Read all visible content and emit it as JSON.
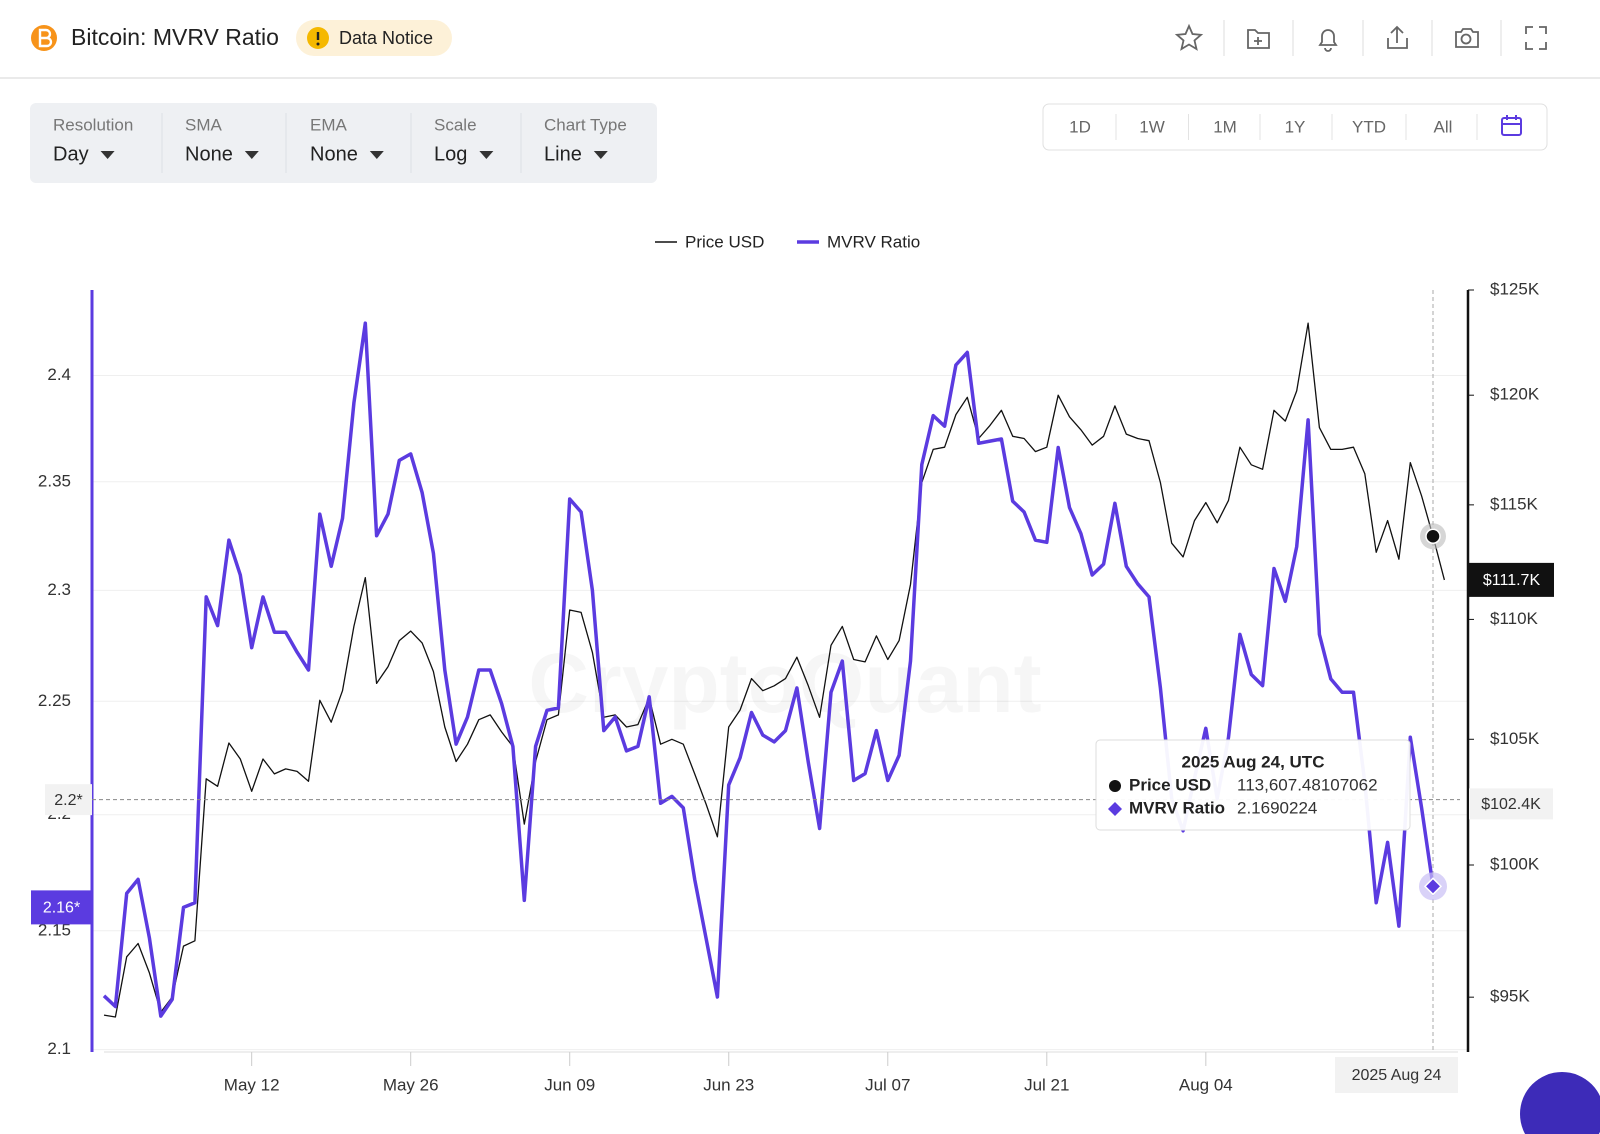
{
  "header": {
    "title": "Bitcoin: MVRV Ratio",
    "notice": "Data Notice"
  },
  "controls": [
    {
      "label": "Resolution",
      "value": "Day"
    },
    {
      "label": "SMA",
      "value": "None"
    },
    {
      "label": "EMA",
      "value": "None"
    },
    {
      "label": "Scale",
      "value": "Log"
    },
    {
      "label": "Chart Type",
      "value": "Line"
    }
  ],
  "ranges": [
    "1D",
    "1W",
    "1M",
    "1Y",
    "YTD",
    "All"
  ],
  "chart_data": {
    "type": "line",
    "watermark": "CryptoQuant",
    "legend": "top",
    "grid": true,
    "log_scale": true,
    "x": [
      "2025-04-29",
      "2025-04-30",
      "2025-05-01",
      "2025-05-02",
      "2025-05-03",
      "2025-05-04",
      "2025-05-05",
      "2025-05-06",
      "2025-05-07",
      "2025-05-08",
      "2025-05-09",
      "2025-05-10",
      "2025-05-11",
      "2025-05-12",
      "2025-05-13",
      "2025-05-14",
      "2025-05-15",
      "2025-05-16",
      "2025-05-17",
      "2025-05-18",
      "2025-05-19",
      "2025-05-20",
      "2025-05-21",
      "2025-05-22",
      "2025-05-23",
      "2025-05-24",
      "2025-05-25",
      "2025-05-26",
      "2025-05-27",
      "2025-05-28",
      "2025-05-29",
      "2025-05-30",
      "2025-05-31",
      "2025-06-01",
      "2025-06-02",
      "2025-06-03",
      "2025-06-04",
      "2025-06-05",
      "2025-06-06",
      "2025-06-07",
      "2025-06-08",
      "2025-06-09",
      "2025-06-10",
      "2025-06-11",
      "2025-06-12",
      "2025-06-13",
      "2025-06-14",
      "2025-06-15",
      "2025-06-16",
      "2025-06-17",
      "2025-06-18",
      "2025-06-19",
      "2025-06-20",
      "2025-06-21",
      "2025-06-22",
      "2025-06-23",
      "2025-06-24",
      "2025-06-25",
      "2025-06-26",
      "2025-06-27",
      "2025-06-28",
      "2025-06-29",
      "2025-06-30",
      "2025-07-01",
      "2025-07-02",
      "2025-07-03",
      "2025-07-04",
      "2025-07-05",
      "2025-07-06",
      "2025-07-07",
      "2025-07-08",
      "2025-07-09",
      "2025-07-10",
      "2025-07-11",
      "2025-07-12",
      "2025-07-13",
      "2025-07-14",
      "2025-07-15",
      "2025-07-16",
      "2025-07-17",
      "2025-07-18",
      "2025-07-19",
      "2025-07-20",
      "2025-07-21",
      "2025-07-22",
      "2025-07-23",
      "2025-07-24",
      "2025-07-25",
      "2025-07-26",
      "2025-07-27",
      "2025-07-28",
      "2025-07-29",
      "2025-07-30",
      "2025-07-31",
      "2025-08-01",
      "2025-08-02",
      "2025-08-03",
      "2025-08-04",
      "2025-08-05",
      "2025-08-06",
      "2025-08-07",
      "2025-08-08",
      "2025-08-09",
      "2025-08-10",
      "2025-08-11",
      "2025-08-12",
      "2025-08-13",
      "2025-08-14",
      "2025-08-15",
      "2025-08-16",
      "2025-08-17",
      "2025-08-18",
      "2025-08-19",
      "2025-08-20",
      "2025-08-21",
      "2025-08-22",
      "2025-08-23",
      "2025-08-24",
      "2025-08-25"
    ],
    "xticks": [
      {
        "value": "2025-05-12",
        "label": "May 12"
      },
      {
        "value": "2025-05-26",
        "label": "May 26"
      },
      {
        "value": "2025-06-09",
        "label": "Jun 09"
      },
      {
        "value": "2025-06-23",
        "label": "Jun 23"
      },
      {
        "value": "2025-07-07",
        "label": "Jul 07"
      },
      {
        "value": "2025-07-21",
        "label": "Jul 21"
      },
      {
        "value": "2025-08-04",
        "label": "Aug 04"
      }
    ],
    "ylim": [
      2.099,
      2.441
    ],
    "yticks": [
      2.1,
      2.15,
      2.2,
      2.25,
      2.3,
      2.35,
      2.4
    ],
    "y2lim": [
      93000,
      125000
    ],
    "y2ticks": [
      {
        "value": 95000,
        "label": "$95K"
      },
      {
        "value": 100000,
        "label": "$100K"
      },
      {
        "value": 105000,
        "label": "$105K"
      },
      {
        "value": 110000,
        "label": "$110K"
      },
      {
        "value": 115000,
        "label": "$115K"
      },
      {
        "value": 120000,
        "label": "$120K"
      },
      {
        "value": 125000,
        "label": "$125K"
      }
    ],
    "series": [
      {
        "name": "Price USD",
        "color": "#111111",
        "axis": "y2",
        "values": [
          94340,
          94270,
          96500,
          97000,
          95900,
          94450,
          95000,
          96900,
          97100,
          103400,
          103100,
          104850,
          104200,
          102900,
          104200,
          103600,
          103800,
          103700,
          103300,
          106600,
          105700,
          107000,
          109700,
          111800,
          107300,
          108000,
          109100,
          109500,
          109000,
          107800,
          105500,
          104100,
          104800,
          105800,
          106000,
          105300,
          104700,
          101600,
          104100,
          105800,
          106000,
          110400,
          110300,
          108600,
          105900,
          106000,
          105500,
          105600,
          106700,
          104800,
          105000,
          104800,
          103600,
          102400,
          101100,
          105500,
          106200,
          107500,
          107000,
          107200,
          107500,
          108400,
          107200,
          105900,
          108900,
          109700,
          108300,
          108200,
          109300,
          108300,
          109100,
          111500,
          116000,
          117500,
          117600,
          119100,
          119900,
          118000,
          118600,
          119300,
          118100,
          118000,
          117400,
          117600,
          120000,
          119000,
          118400,
          117700,
          118100,
          119500,
          118200,
          118000,
          117900,
          116000,
          113300,
          112700,
          114300,
          115100,
          114200,
          115200,
          117600,
          116800,
          116600,
          119300,
          118800,
          120200,
          123400,
          118500,
          117500,
          117500,
          117600,
          116400,
          112900,
          114300,
          112600,
          116900,
          115400,
          113607.48107062,
          111700
        ]
      },
      {
        "name": "MVRV Ratio",
        "color": "#5b3be0",
        "axis": "y",
        "values": [
          2.1225,
          2.118,
          2.166,
          2.172,
          2.147,
          2.114,
          2.121,
          2.16,
          2.162,
          2.297,
          2.284,
          2.323,
          2.307,
          2.274,
          2.297,
          2.281,
          2.281,
          2.272,
          2.264,
          2.335,
          2.311,
          2.333,
          2.387,
          2.425,
          2.325,
          2.335,
          2.36,
          2.363,
          2.345,
          2.317,
          2.264,
          2.231,
          2.243,
          2.264,
          2.264,
          2.249,
          2.23,
          2.163,
          2.23,
          2.246,
          2.247,
          2.342,
          2.336,
          2.3,
          2.237,
          2.243,
          2.228,
          2.23,
          2.252,
          2.205,
          2.208,
          2.203,
          2.172,
          2.147,
          2.122,
          2.213,
          2.225,
          2.245,
          2.235,
          2.232,
          2.237,
          2.256,
          2.223,
          2.194,
          2.254,
          2.268,
          2.215,
          2.218,
          2.237,
          2.215,
          2.226,
          2.268,
          2.358,
          2.381,
          2.376,
          2.405,
          2.411,
          2.368,
          2.369,
          2.37,
          2.341,
          2.336,
          2.323,
          2.322,
          2.366,
          2.338,
          2.326,
          2.307,
          2.312,
          2.34,
          2.311,
          2.303,
          2.297,
          2.256,
          2.207,
          2.193,
          2.216,
          2.238,
          2.207,
          2.234,
          2.28,
          2.262,
          2.257,
          2.31,
          2.295,
          2.32,
          2.379,
          2.28,
          2.26,
          2.254,
          2.254,
          2.214,
          2.162,
          2.188,
          2.152,
          2.234,
          2.203,
          2.1690224,
          null
        ]
      }
    ],
    "crosshair": {
      "x": "2025-08-24",
      "x_label": "2025 Aug 24",
      "y": {
        "value": 2.2066,
        "label": "2.2*"
      },
      "y2": {
        "value": 102400,
        "label": "$102.4K"
      }
    },
    "last_value_labels": {
      "y": {
        "value": 2.16,
        "label": "2.16*"
      },
      "y2": {
        "value": 111700,
        "label": "$111.7K"
      }
    },
    "tooltip": {
      "title": "2025 Aug 24, UTC",
      "labels": [
        "113,607.48107062",
        "2.1690224"
      ]
    }
  }
}
